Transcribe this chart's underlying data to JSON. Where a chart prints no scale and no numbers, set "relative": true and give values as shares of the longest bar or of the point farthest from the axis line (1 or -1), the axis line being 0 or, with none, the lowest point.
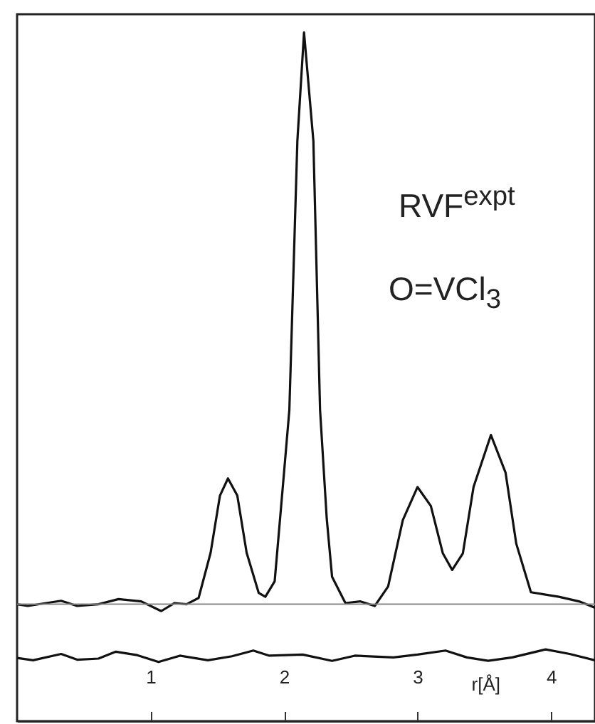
{
  "chart_data": {
    "type": "line",
    "relative": true,
    "xlabel": "r[Å]",
    "annotations": [
      "RVF$^{expt}$",
      "O=VCl$_{3}$"
    ],
    "xlim": [
      0,
      4.33
    ],
    "xticks": [
      1,
      2,
      3,
      4
    ],
    "grid": false,
    "ref_lines": [
      {
        "axis": "y",
        "value": 0,
        "color": "#888888"
      }
    ],
    "series": [
      {
        "color": "#111111",
        "x": [
          0,
          0.08,
          0.33,
          0.45,
          0.61,
          0.76,
          0.93,
          1.08,
          1.18,
          1.27,
          1.36,
          1.45,
          1.52,
          1.58,
          1.65,
          1.72,
          1.81,
          1.86,
          1.93,
          2.0,
          2.04,
          2.1,
          2.15,
          2.22,
          2.27,
          2.32,
          2.36,
          2.46,
          2.57,
          2.68,
          2.78,
          2.89,
          3.0,
          3.1,
          3.19,
          3.26,
          3.34,
          3.42,
          3.55,
          3.66,
          3.74,
          3.85,
          4.06,
          4.21,
          4.33
        ],
        "values": [
          0,
          -0.003,
          0.006,
          -0.003,
          0,
          0.009,
          0.005,
          -0.012,
          0.002,
          0,
          0.011,
          0.09,
          0.19,
          0.22,
          0.19,
          0.09,
          0.02,
          0.013,
          0.04,
          0.23,
          0.34,
          0.81,
          1,
          0.81,
          0.34,
          0.15,
          0.048,
          0.002,
          0.005,
          -0.003,
          0.031,
          0.147,
          0.205,
          0.172,
          0.089,
          0.06,
          0.089,
          0.205,
          0.296,
          0.23,
          0.106,
          0.021,
          0.013,
          0.005,
          -0.006
        ]
      },
      {
        "color": "#111111",
        "x": [
          0,
          0.12,
          0.33,
          0.45,
          0.61,
          0.74,
          0.9,
          1.06,
          1.22,
          1.43,
          1.61,
          1.77,
          1.89,
          2.14,
          2.36,
          2.53,
          2.82,
          3.0,
          3.21,
          3.37,
          3.53,
          3.71,
          3.96,
          4.14,
          4.33
        ],
        "values": [
          -0.094,
          -0.098,
          -0.087,
          -0.097,
          -0.095,
          -0.083,
          -0.089,
          -0.101,
          -0.09,
          -0.098,
          -0.091,
          -0.081,
          -0.09,
          -0.088,
          -0.099,
          -0.09,
          -0.093,
          -0.088,
          -0.081,
          -0.093,
          -0.099,
          -0.093,
          -0.079,
          -0.087,
          -0.098
        ]
      }
    ]
  }
}
